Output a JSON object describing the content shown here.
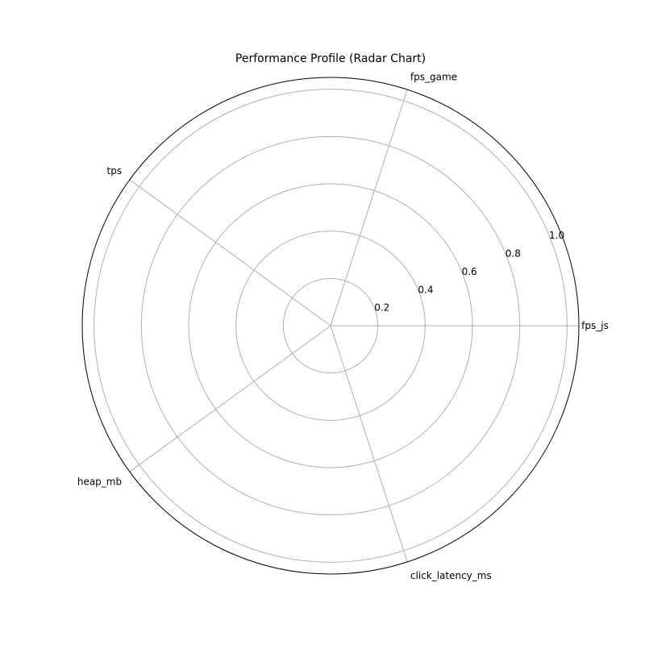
{
  "chart_data": {
    "type": "radar",
    "title": "Performance Profile (Radar Chart)",
    "axes": [
      "fps_js",
      "fps_game",
      "tps",
      "heap_mb",
      "click_latency_ms"
    ],
    "radial_ticks": [
      "0.2",
      "0.4",
      "0.6",
      "0.8",
      "1.0"
    ],
    "radial_tick_values": [
      0.2,
      0.4,
      0.6,
      0.8,
      1.0
    ],
    "rlim": [
      0,
      1.05
    ],
    "series": [],
    "grid": true,
    "colors": {
      "grid": "#b0b0b0",
      "frame": "#000000",
      "text": "#000000"
    }
  }
}
